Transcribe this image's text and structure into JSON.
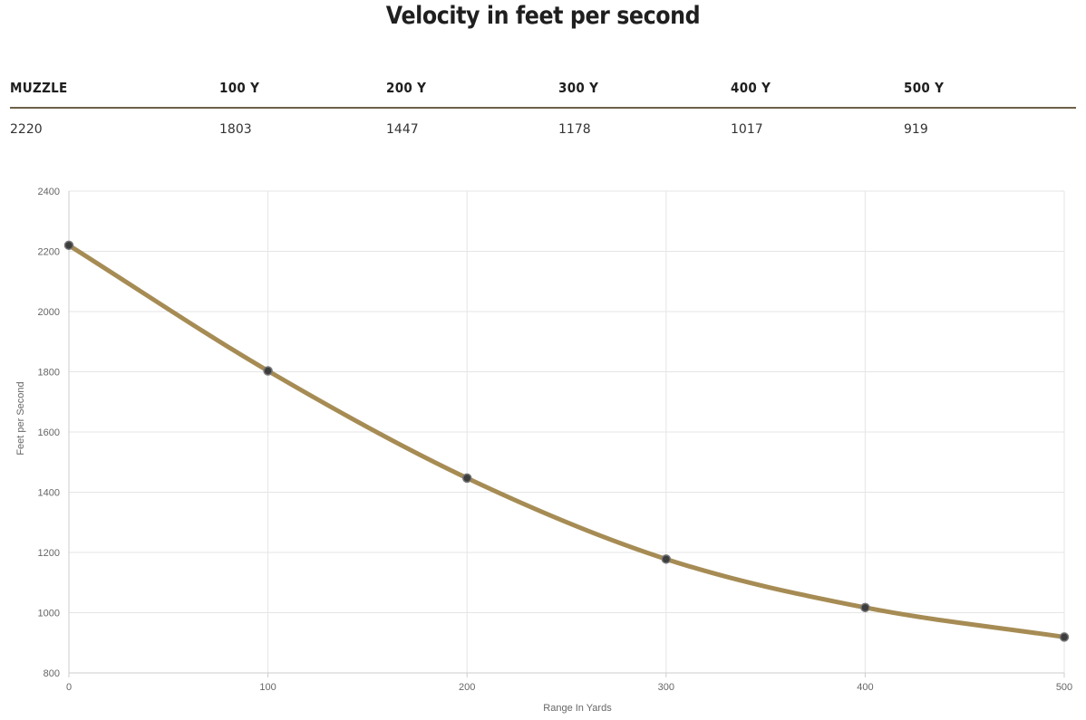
{
  "title": "Velocity in feet per second",
  "table": {
    "headers": [
      "MUZZLE",
      "100 Y",
      "200 Y",
      "300 Y",
      "400 Y",
      "500 Y"
    ],
    "values": [
      "2220",
      "1803",
      "1447",
      "1178",
      "1017",
      "919"
    ]
  },
  "chart_data": {
    "type": "line",
    "xlabel": "Range In Yards",
    "ylabel": "Feet per Second",
    "x": [
      0,
      100,
      200,
      300,
      400,
      500
    ],
    "series": [
      {
        "values": [
          2220,
          1803,
          1447,
          1178,
          1017,
          919
        ]
      }
    ],
    "xlim": [
      0,
      500
    ],
    "ylim": [
      800,
      2400
    ],
    "xticks": [
      "0",
      "100",
      "200",
      "300",
      "400",
      "500"
    ],
    "yticks": [
      "800",
      "1000",
      "1200",
      "1400",
      "1600",
      "1800",
      "2000",
      "2200",
      "2400"
    ],
    "grid": true,
    "colors": {
      "line": "#a68c54",
      "point": "#3d3d3d",
      "grid": "#e5e5e5"
    }
  }
}
